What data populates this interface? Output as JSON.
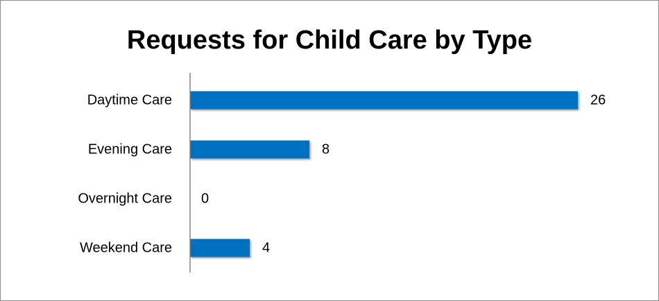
{
  "chart_data": {
    "type": "bar",
    "orientation": "horizontal",
    "title": "Requests for Child Care by Type",
    "categories": [
      "Daytime Care",
      "Evening Care",
      "Overnight Care",
      "Weekend Care"
    ],
    "values": [
      26,
      8,
      0,
      4
    ],
    "xlim": [
      0,
      26
    ],
    "grid": false,
    "legend": "none",
    "data_labels": true,
    "bar_color": "#0070C0"
  }
}
